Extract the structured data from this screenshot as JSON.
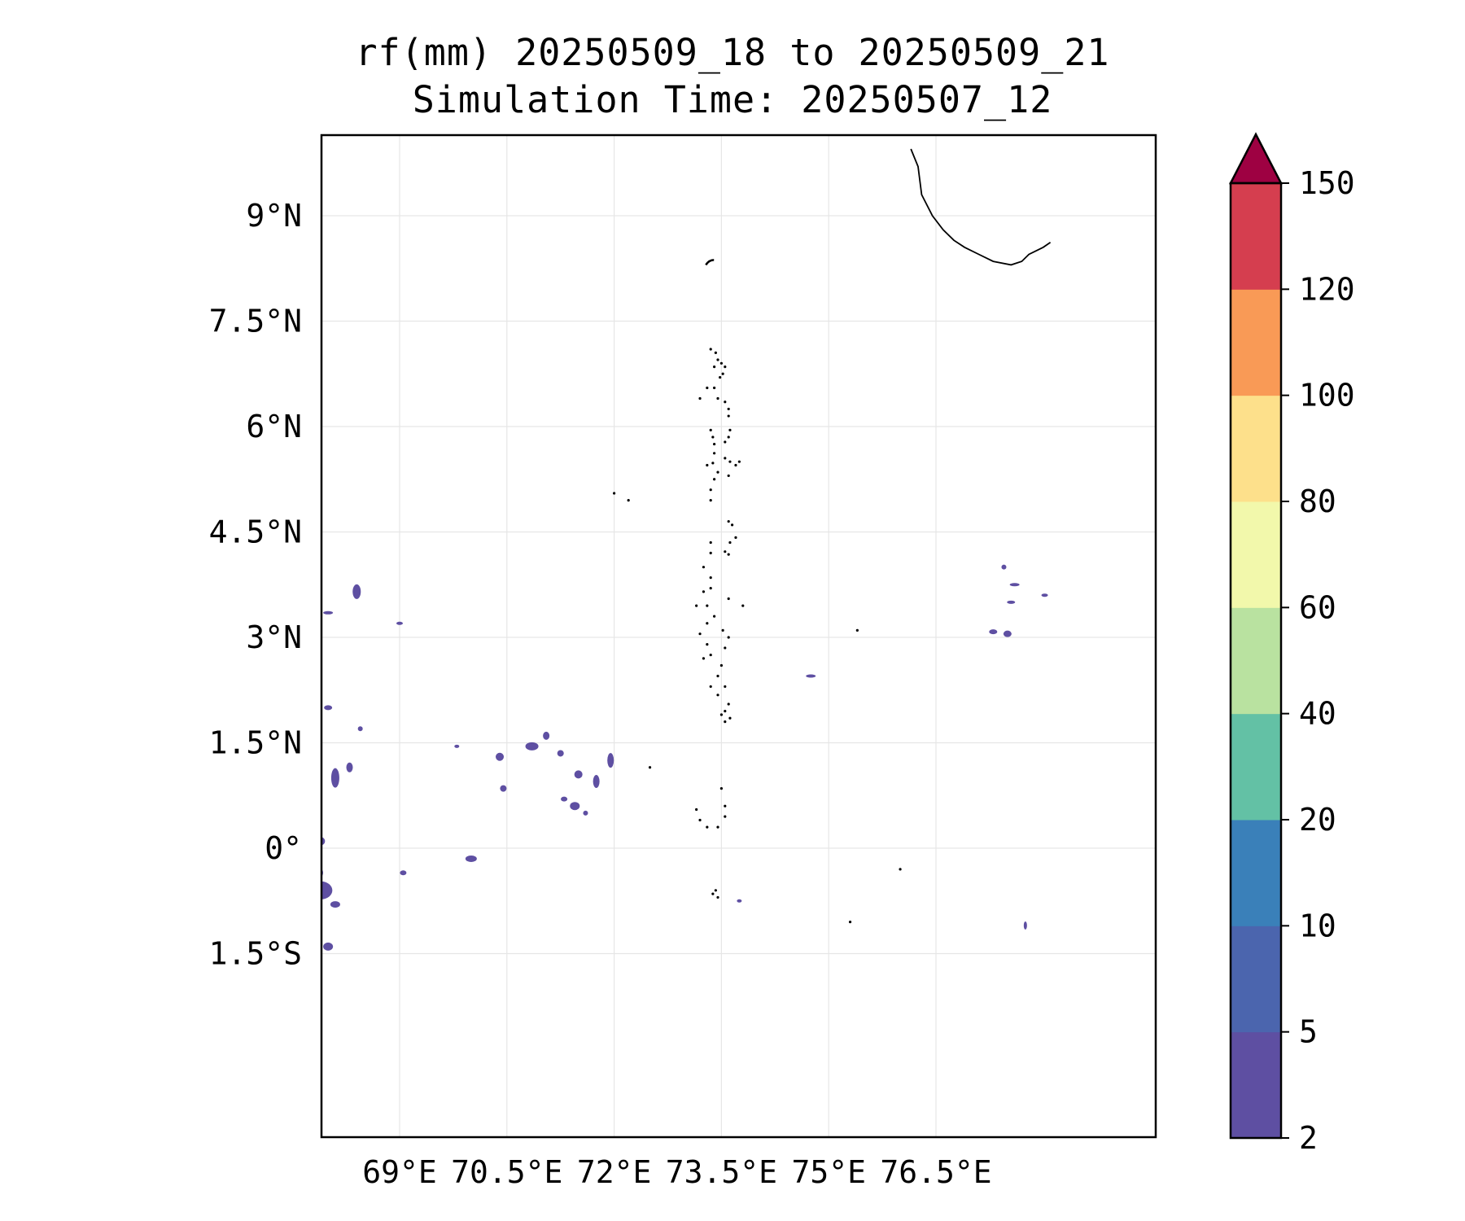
{
  "title": {
    "line1": "rf(mm) 20250509_18 to 20250509_21",
    "line2": "Simulation Time: 20250507_12"
  },
  "map": {
    "lon_range": [
      67.8,
      78.1
    ],
    "lat_range": [
      -2.0,
      9.95
    ],
    "x_ticks": [
      {
        "value": 69.0,
        "label": "69°E"
      },
      {
        "value": 70.5,
        "label": "70.5°E"
      },
      {
        "value": 72.0,
        "label": "72°E"
      },
      {
        "value": 73.5,
        "label": "73.5°E"
      },
      {
        "value": 75.0,
        "label": "75°E"
      },
      {
        "value": 76.5,
        "label": "76.5°E"
      }
    ],
    "y_ticks": [
      {
        "value": 9.0,
        "label": "9°N"
      },
      {
        "value": 7.5,
        "label": "7.5°N"
      },
      {
        "value": 6.0,
        "label": "6°N"
      },
      {
        "value": 4.5,
        "label": "4.5°N"
      },
      {
        "value": 3.0,
        "label": "3°N"
      },
      {
        "value": 1.5,
        "label": "1.5°N"
      },
      {
        "value": 0.0,
        "label": "0°"
      },
      {
        "value": -1.5,
        "label": "1.5°S"
      }
    ],
    "grid": true,
    "coastline_color": "#000000",
    "india_coast": [
      [
        76.15,
        9.95
      ],
      [
        76.25,
        9.7
      ],
      [
        76.3,
        9.3
      ],
      [
        76.45,
        9.0
      ],
      [
        76.6,
        8.8
      ],
      [
        76.75,
        8.65
      ],
      [
        76.9,
        8.55
      ],
      [
        77.1,
        8.45
      ],
      [
        77.3,
        8.35
      ],
      [
        77.55,
        8.3
      ],
      [
        77.7,
        8.35
      ],
      [
        77.8,
        8.45
      ],
      [
        78.0,
        8.55
      ],
      [
        78.1,
        8.62
      ]
    ],
    "island_dots": [
      [
        73.35,
        7.1
      ],
      [
        73.42,
        7.05
      ],
      [
        73.45,
        6.95
      ],
      [
        73.4,
        6.85
      ],
      [
        73.5,
        6.9
      ],
      [
        73.55,
        6.85
      ],
      [
        73.52,
        6.75
      ],
      [
        73.48,
        6.7
      ],
      [
        73.4,
        6.55
      ],
      [
        73.3,
        6.55
      ],
      [
        73.45,
        6.4
      ],
      [
        73.55,
        6.35
      ],
      [
        73.6,
        6.25
      ],
      [
        73.6,
        6.15
      ],
      [
        73.2,
        6.4
      ],
      [
        73.35,
        5.95
      ],
      [
        73.38,
        5.85
      ],
      [
        73.4,
        5.75
      ],
      [
        73.4,
        5.62
      ],
      [
        73.38,
        5.48
      ],
      [
        73.3,
        5.45
      ],
      [
        73.62,
        5.95
      ],
      [
        73.6,
        5.85
      ],
      [
        73.55,
        5.78
      ],
      [
        73.55,
        5.55
      ],
      [
        73.62,
        5.5
      ],
      [
        73.7,
        5.45
      ],
      [
        73.75,
        5.5
      ],
      [
        73.45,
        5.35
      ],
      [
        73.4,
        5.25
      ],
      [
        73.35,
        5.1
      ],
      [
        73.35,
        4.95
      ],
      [
        73.6,
        5.3
      ],
      [
        73.6,
        4.65
      ],
      [
        73.65,
        4.6
      ],
      [
        73.7,
        4.42
      ],
      [
        73.62,
        4.35
      ],
      [
        73.55,
        4.22
      ],
      [
        73.6,
        4.18
      ],
      [
        73.35,
        4.35
      ],
      [
        73.35,
        4.2
      ],
      [
        73.25,
        4.0
      ],
      [
        73.35,
        3.85
      ],
      [
        73.35,
        3.7
      ],
      [
        73.25,
        3.65
      ],
      [
        73.3,
        3.45
      ],
      [
        73.4,
        3.3
      ],
      [
        73.3,
        3.2
      ],
      [
        73.2,
        3.05
      ],
      [
        73.3,
        2.9
      ],
      [
        73.35,
        2.75
      ],
      [
        73.25,
        2.7
      ],
      [
        73.52,
        3.1
      ],
      [
        73.6,
        3.0
      ],
      [
        73.55,
        2.85
      ],
      [
        73.5,
        2.6
      ],
      [
        73.45,
        2.45
      ],
      [
        73.55,
        2.3
      ],
      [
        73.35,
        2.3
      ],
      [
        73.45,
        2.18
      ],
      [
        73.5,
        1.9
      ],
      [
        73.55,
        1.95
      ],
      [
        73.6,
        2.05
      ],
      [
        73.62,
        1.85
      ],
      [
        73.55,
        1.8
      ],
      [
        73.5,
        0.85
      ],
      [
        73.55,
        0.6
      ],
      [
        73.55,
        0.45
      ],
      [
        73.45,
        0.3
      ],
      [
        73.3,
        0.3
      ],
      [
        73.2,
        0.4
      ],
      [
        73.15,
        0.55
      ],
      [
        73.38,
        -0.65
      ],
      [
        73.45,
        -0.7
      ],
      [
        73.42,
        -0.6
      ],
      [
        72.0,
        5.05
      ],
      [
        72.2,
        4.95
      ],
      [
        73.15,
        3.45
      ],
      [
        73.6,
        3.55
      ],
      [
        73.8,
        3.45
      ],
      [
        75.4,
        3.1
      ],
      [
        72.5,
        1.15
      ],
      [
        76.0,
        -0.3
      ],
      [
        75.3,
        -1.05
      ]
    ],
    "rain_color": "#5e4fa2",
    "rain_patches": [
      [
        68.4,
        3.65,
        5,
        9
      ],
      [
        68.0,
        3.35,
        6,
        2
      ],
      [
        69.0,
        3.2,
        4,
        2
      ],
      [
        68.0,
        2.0,
        5,
        3
      ],
      [
        68.45,
        1.7,
        3,
        3
      ],
      [
        68.3,
        1.15,
        4,
        6
      ],
      [
        68.1,
        1.0,
        5,
        12
      ],
      [
        67.9,
        0.1,
        5,
        5
      ],
      [
        67.85,
        -0.35,
        7,
        7
      ],
      [
        67.9,
        -0.6,
        14,
        11
      ],
      [
        68.1,
        -0.8,
        6,
        4
      ],
      [
        68.0,
        -1.4,
        6,
        5
      ],
      [
        70.0,
        -0.15,
        7,
        4
      ],
      [
        70.45,
        0.85,
        4,
        4
      ],
      [
        70.4,
        1.3,
        5,
        5
      ],
      [
        70.85,
        1.45,
        8,
        5
      ],
      [
        71.05,
        1.6,
        4,
        5
      ],
      [
        71.25,
        1.35,
        4,
        4
      ],
      [
        71.5,
        1.05,
        5,
        5
      ],
      [
        71.75,
        0.95,
        4,
        8
      ],
      [
        71.95,
        1.25,
        4,
        9
      ],
      [
        71.45,
        0.6,
        6,
        5
      ],
      [
        71.3,
        0.7,
        4,
        3
      ],
      [
        71.6,
        0.5,
        3,
        3
      ],
      [
        69.8,
        1.45,
        3,
        2
      ],
      [
        69.05,
        -0.35,
        4,
        3
      ],
      [
        74.75,
        2.45,
        6,
        2
      ],
      [
        77.3,
        3.08,
        5,
        3
      ],
      [
        77.5,
        3.05,
        5,
        4
      ],
      [
        77.6,
        3.75,
        6,
        2
      ],
      [
        77.55,
        3.5,
        5,
        2
      ],
      [
        77.45,
        4.0,
        3,
        3
      ],
      [
        78.02,
        3.6,
        4,
        2
      ],
      [
        77.75,
        -1.1,
        2,
        5
      ],
      [
        73.75,
        -0.75,
        3,
        2
      ]
    ]
  },
  "colorbar": {
    "levels": [
      "2",
      "5",
      "10",
      "20",
      "40",
      "60",
      "80",
      "100",
      "120",
      "150"
    ],
    "colors": [
      "#5e4fa2",
      "#4b65ae",
      "#3a80b9",
      "#63c1a5",
      "#b9e2a0",
      "#f2f8ab",
      "#fde08b",
      "#f99a56",
      "#d53e4f"
    ],
    "extend_color": "#9e0142"
  }
}
